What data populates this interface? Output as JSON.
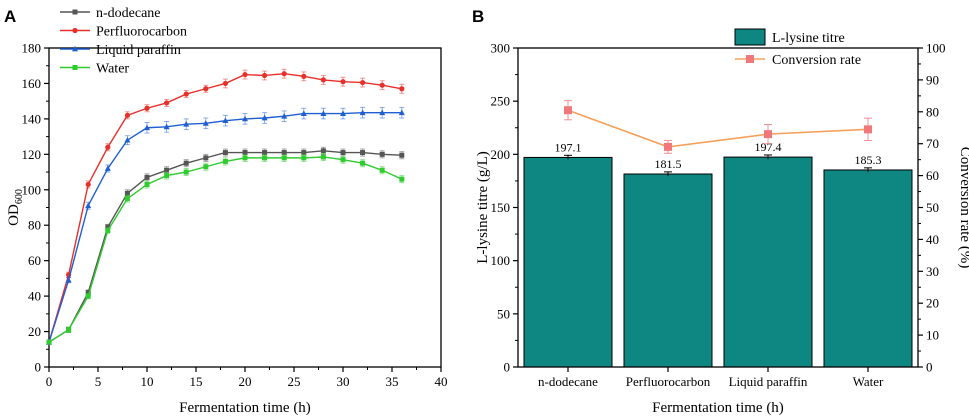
{
  "chart_data": [
    {
      "panel": "A",
      "type": "line",
      "xlabel": "Fermentation time (h)",
      "ylabel": "OD",
      "ylabel_sub": "600",
      "xlim": [
        0,
        40
      ],
      "ylim": [
        0,
        180
      ],
      "xticks": [
        0,
        5,
        10,
        15,
        20,
        25,
        30,
        35,
        40
      ],
      "yticks": [
        0,
        20,
        40,
        60,
        80,
        100,
        120,
        140,
        160,
        180
      ],
      "legend_position": "top-left",
      "x": [
        0,
        2,
        4,
        6,
        8,
        10,
        12,
        14,
        16,
        18,
        20,
        22,
        24,
        26,
        28,
        30,
        32,
        34,
        36
      ],
      "series": [
        {
          "name": "n-dodecane",
          "color": "#555555",
          "marker": "square",
          "values": [
            14,
            21,
            42,
            79,
            98,
            107,
            111,
            115,
            118,
            121,
            121,
            121,
            121,
            121,
            122,
            121,
            121,
            120,
            119.5
          ],
          "errors": [
            1,
            1.5,
            1.5,
            1.5,
            2,
            2,
            2,
            2,
            2,
            2,
            2,
            2,
            2,
            2,
            2,
            2,
            2,
            2,
            2
          ]
        },
        {
          "name": "Perfluorocarbon",
          "color": "#e8302a",
          "marker": "circle",
          "values": [
            14,
            52,
            103,
            124,
            142,
            146,
            149,
            154,
            157,
            160,
            165,
            164.5,
            165.5,
            164,
            162,
            161,
            160.5,
            159,
            157
          ],
          "errors": [
            1,
            1.5,
            2,
            2,
            2,
            2,
            2,
            2,
            2,
            2.5,
            2.5,
            2.5,
            2.5,
            2.5,
            2.5,
            2.5,
            2.5,
            2.5,
            2.5
          ]
        },
        {
          "name": "Liquid paraffin",
          "color": "#1f5fd1",
          "marker": "triangle",
          "values": [
            14,
            49,
            91,
            112,
            128,
            135,
            135.5,
            137,
            137.5,
            139,
            140,
            140.5,
            141.5,
            143,
            143,
            143,
            143.5,
            143.5,
            143.5
          ],
          "errors": [
            1,
            1.5,
            2,
            2,
            2.5,
            3,
            3,
            3,
            3,
            3,
            3,
            3,
            3,
            3,
            3,
            3,
            3,
            3,
            3
          ]
        },
        {
          "name": "Water",
          "color": "#2ecc2e",
          "marker": "square",
          "values": [
            14,
            21,
            40,
            77,
            95,
            103,
            108,
            110,
            113,
            116,
            118,
            118,
            118,
            118,
            118.5,
            117,
            115,
            111,
            106
          ],
          "errors": [
            1,
            1.5,
            1.5,
            1.5,
            2,
            2,
            2,
            2,
            2,
            2,
            2,
            2,
            2,
            2,
            2,
            2,
            2,
            2,
            2
          ]
        }
      ]
    },
    {
      "panel": "B",
      "type": "bar",
      "xlabel": "Fermentation time (h)",
      "ylabel": "L-lysine titre (g/L)",
      "ylabel_right": "Conversion rate (%)",
      "categories": [
        "n-dodecane",
        "Perfluorocarbon",
        "Liquid paraffin",
        "Water"
      ],
      "ylim": [
        0,
        300
      ],
      "yticks": [
        0,
        50,
        100,
        150,
        200,
        250,
        300
      ],
      "ylim_right": [
        0,
        100
      ],
      "yticks_right": [
        0,
        10,
        20,
        30,
        40,
        50,
        60,
        70,
        80,
        90,
        100
      ],
      "legend_position": "top-right",
      "series": [
        {
          "name": "L-lysine titre",
          "kind": "bar",
          "axis": "left",
          "color": "#0e8682",
          "values": [
            197.1,
            181.5,
            197.4,
            185.3
          ],
          "labels": [
            "197.1",
            "181.5",
            "197.4",
            "185.3"
          ],
          "errors": [
            2,
            2,
            2,
            2
          ]
        },
        {
          "name": "Conversion rate",
          "kind": "line",
          "axis": "right",
          "color": "#f5a05a",
          "marker_color": "#f0787a",
          "values": [
            80.5,
            69,
            73,
            74.5
          ],
          "errors": [
            3,
            2,
            3,
            3.5
          ]
        }
      ]
    }
  ]
}
